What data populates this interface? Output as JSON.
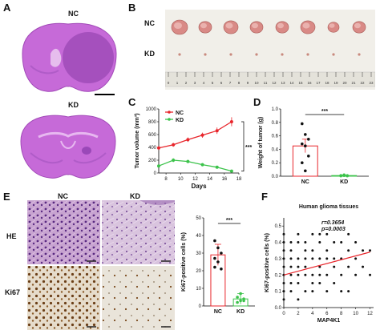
{
  "panels": {
    "a": {
      "letter": "A",
      "nc_label": "NC",
      "kd_label": "KD"
    },
    "b": {
      "letter": "B",
      "nc_label": "NC",
      "kd_label": "KD",
      "ruler_ticks": [
        "0",
        "1",
        "2",
        "3",
        "4",
        "5",
        "6",
        "7",
        "8",
        "9",
        "10",
        "11",
        "12",
        "13",
        "14",
        "15",
        "16",
        "17",
        "18",
        "19",
        "20",
        "21",
        "22",
        "23"
      ]
    },
    "c": {
      "letter": "C"
    },
    "d": {
      "letter": "D"
    },
    "e": {
      "letter": "E",
      "nc_label": "NC",
      "kd_label": "KD",
      "row_he": "HE",
      "row_ki67": "Ki67"
    },
    "f": {
      "letter": "F"
    }
  },
  "colors": {
    "nc": "#e8262c",
    "kd": "#3cc34b",
    "tissue": "#c66ad8",
    "ihc_brown": "#7a4a1e"
  },
  "chart_data": [
    {
      "id": "C",
      "type": "line",
      "xlabel": "Days",
      "ylabel": "Tumor volume (mm³)",
      "xticks": [
        8,
        10,
        12,
        14,
        16,
        18
      ],
      "yticks": [
        0,
        200,
        400,
        600,
        800,
        1000
      ],
      "xlim": [
        7,
        18
      ],
      "ylim": [
        0,
        1000
      ],
      "series": [
        {
          "name": "NC",
          "color": "#e8262c",
          "x": [
            7,
            9,
            11,
            13,
            15,
            17
          ],
          "y": [
            390,
            440,
            520,
            590,
            660,
            800
          ],
          "err": [
            30,
            30,
            35,
            40,
            50,
            70
          ]
        },
        {
          "name": "KD",
          "color": "#3cc34b",
          "x": [
            7,
            9,
            11,
            13,
            15,
            17
          ],
          "y": [
            110,
            200,
            180,
            130,
            90,
            30
          ],
          "err": [
            20,
            30,
            25,
            25,
            20,
            10
          ]
        }
      ],
      "significance": "***",
      "legend": "top-left"
    },
    {
      "id": "D",
      "type": "bar",
      "ylabel": "Weight of tumor (g)",
      "categories": [
        "NC",
        "KD"
      ],
      "values": [
        0.45,
        0.01
      ],
      "err": [
        0.1,
        0.005
      ],
      "points": [
        [
          0.78,
          0.62,
          0.55,
          0.48,
          0.45,
          0.3,
          0.2,
          0.08
        ],
        [
          0.01,
          0.01,
          0.005,
          0.01,
          0.015,
          0.01,
          0.005,
          0.02
        ]
      ],
      "yticks": [
        0.0,
        0.2,
        0.4,
        0.6,
        0.8,
        1.0
      ],
      "ylim": [
        0,
        1.0
      ],
      "significance": "***"
    },
    {
      "id": "E-bar",
      "type": "bar",
      "ylabel": "Ki67-positive cells (%)",
      "categories": [
        "NC",
        "KD"
      ],
      "values": [
        29,
        4
      ],
      "err": [
        6,
        3
      ],
      "points": [
        [
          37,
          33,
          30,
          27,
          25,
          21,
          22
        ],
        [
          2,
          3,
          4,
          5,
          7,
          3
        ]
      ],
      "yticks": [
        0,
        10,
        20,
        30,
        40,
        50
      ],
      "ylim": [
        0,
        50
      ],
      "significance": "***"
    },
    {
      "id": "F",
      "type": "scatter",
      "title": "Human glioma tissues",
      "xlabel": "MAP4K1",
      "ylabel": "Ki67-positive cells (%)",
      "xticks": [
        0,
        2,
        4,
        6,
        8,
        10,
        12
      ],
      "yticks": [
        0.0,
        0.1,
        0.2,
        0.3,
        0.4,
        0.5
      ],
      "xlim": [
        0,
        12.5
      ],
      "ylim": [
        0,
        0.55
      ],
      "annotation_r": "r=0.3654",
      "annotation_p": "p=0.0003",
      "fit": {
        "x": [
          0,
          12
        ],
        "y": [
          0.2,
          0.34
        ],
        "color": "#e8262c"
      },
      "points": [
        [
          0,
          0.1
        ],
        [
          0,
          0.15
        ],
        [
          0,
          0.2
        ],
        [
          0,
          0.25
        ],
        [
          0,
          0.3
        ],
        [
          0,
          0.35
        ],
        [
          0,
          0.4
        ],
        [
          0,
          0.45
        ],
        [
          0,
          0.05
        ],
        [
          1,
          0.1
        ],
        [
          1,
          0.15
        ],
        [
          1,
          0.2
        ],
        [
          1,
          0.25
        ],
        [
          1,
          0.3
        ],
        [
          1,
          0.35
        ],
        [
          1,
          0.4
        ],
        [
          2,
          0.05
        ],
        [
          2,
          0.15
        ],
        [
          2,
          0.2
        ],
        [
          2,
          0.25
        ],
        [
          2,
          0.3
        ],
        [
          2,
          0.4
        ],
        [
          2,
          0.45
        ],
        [
          3,
          0.1
        ],
        [
          3,
          0.2
        ],
        [
          3,
          0.25
        ],
        [
          3,
          0.3
        ],
        [
          3,
          0.35
        ],
        [
          3,
          0.4
        ],
        [
          4,
          0.1
        ],
        [
          4,
          0.15
        ],
        [
          4,
          0.2
        ],
        [
          4,
          0.3
        ],
        [
          4,
          0.35
        ],
        [
          4,
          0.45
        ],
        [
          5,
          0.15
        ],
        [
          5,
          0.2
        ],
        [
          5,
          0.25
        ],
        [
          5,
          0.3
        ],
        [
          5,
          0.4
        ],
        [
          5,
          0.45
        ],
        [
          6,
          0.1
        ],
        [
          6,
          0.2
        ],
        [
          6,
          0.3
        ],
        [
          6,
          0.35
        ],
        [
          6,
          0.45
        ],
        [
          7,
          0.15
        ],
        [
          7,
          0.25
        ],
        [
          7,
          0.3
        ],
        [
          7,
          0.4
        ],
        [
          8,
          0.1
        ],
        [
          8,
          0.2
        ],
        [
          8,
          0.3
        ],
        [
          8,
          0.4
        ],
        [
          9,
          0.1
        ],
        [
          9,
          0.25
        ],
        [
          9,
          0.35
        ],
        [
          9,
          0.45
        ],
        [
          10,
          0.2
        ],
        [
          10,
          0.3
        ],
        [
          10,
          0.4
        ],
        [
          11,
          0.25
        ],
        [
          11,
          0.35
        ],
        [
          12,
          0.2
        ],
        [
          12,
          0.35
        ]
      ]
    }
  ]
}
